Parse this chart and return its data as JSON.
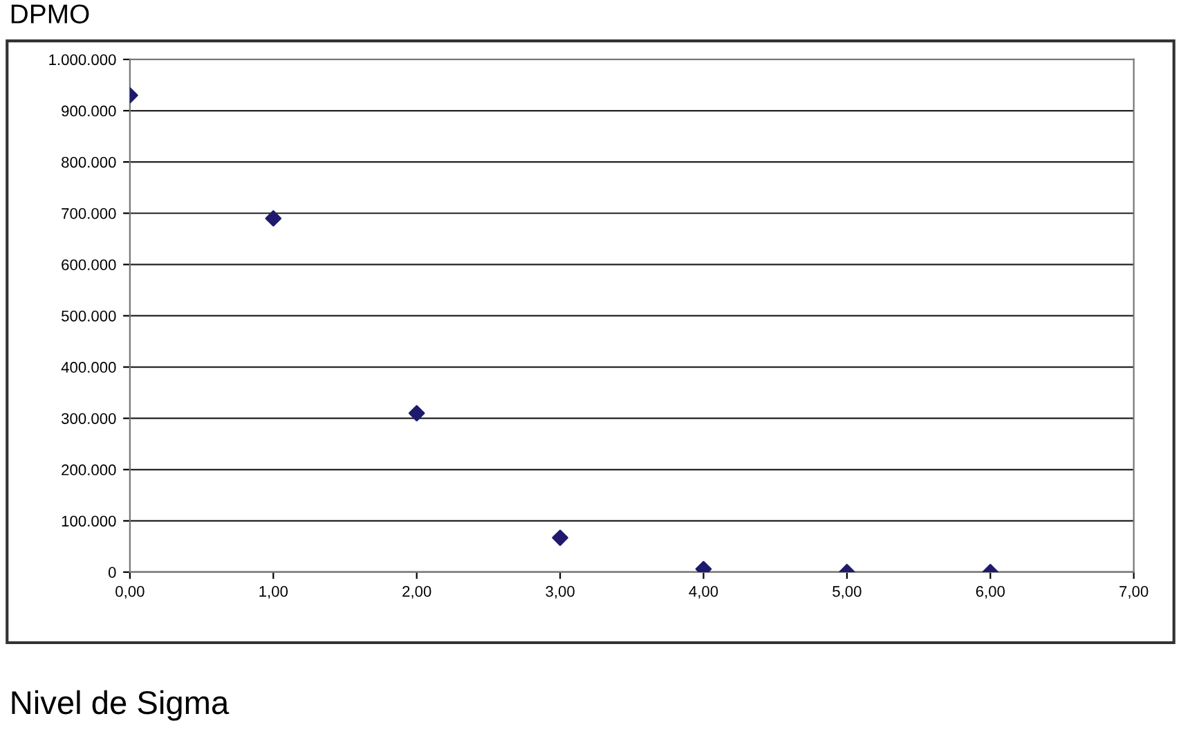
{
  "chart_data": {
    "type": "scatter",
    "title": "DPMO",
    "xlabel": "Nivel de Sigma",
    "x": [
      0,
      1,
      2,
      3,
      4,
      5,
      6
    ],
    "series": [
      {
        "color": "#1f1a6e",
        "values": [
          930000,
          690000,
          310000,
          67000,
          6000,
          0,
          0
        ]
      }
    ],
    "xlim": [
      0,
      7
    ],
    "xticks": [
      {
        "value": 0,
        "label": "0,00"
      },
      {
        "value": 1,
        "label": "1,00"
      },
      {
        "value": 2,
        "label": "2,00"
      },
      {
        "value": 3,
        "label": "3,00"
      },
      {
        "value": 4,
        "label": "4,00"
      },
      {
        "value": 5,
        "label": "5,00"
      },
      {
        "value": 6,
        "label": "6,00"
      },
      {
        "value": 7,
        "label": "7,00"
      }
    ],
    "ylim": [
      0,
      1000000
    ],
    "yticks": [
      0,
      {
        "value": 100000,
        "label": "100.000"
      },
      {
        "value": 200000,
        "label": "200.000"
      },
      {
        "value": 300000,
        "label": "300.000"
      },
      {
        "value": 400000,
        "label": "400.000"
      },
      {
        "value": 500000,
        "label": "500.000"
      },
      {
        "value": 600000,
        "label": "600.000"
      },
      {
        "value": 700000,
        "label": "700.000"
      },
      {
        "value": 800000,
        "label": "800.000"
      },
      {
        "value": 900000,
        "label": "900.000"
      },
      {
        "value": 1000000,
        "label": "1.000.000"
      }
    ],
    "grid": "y",
    "marker": "diamond"
  }
}
